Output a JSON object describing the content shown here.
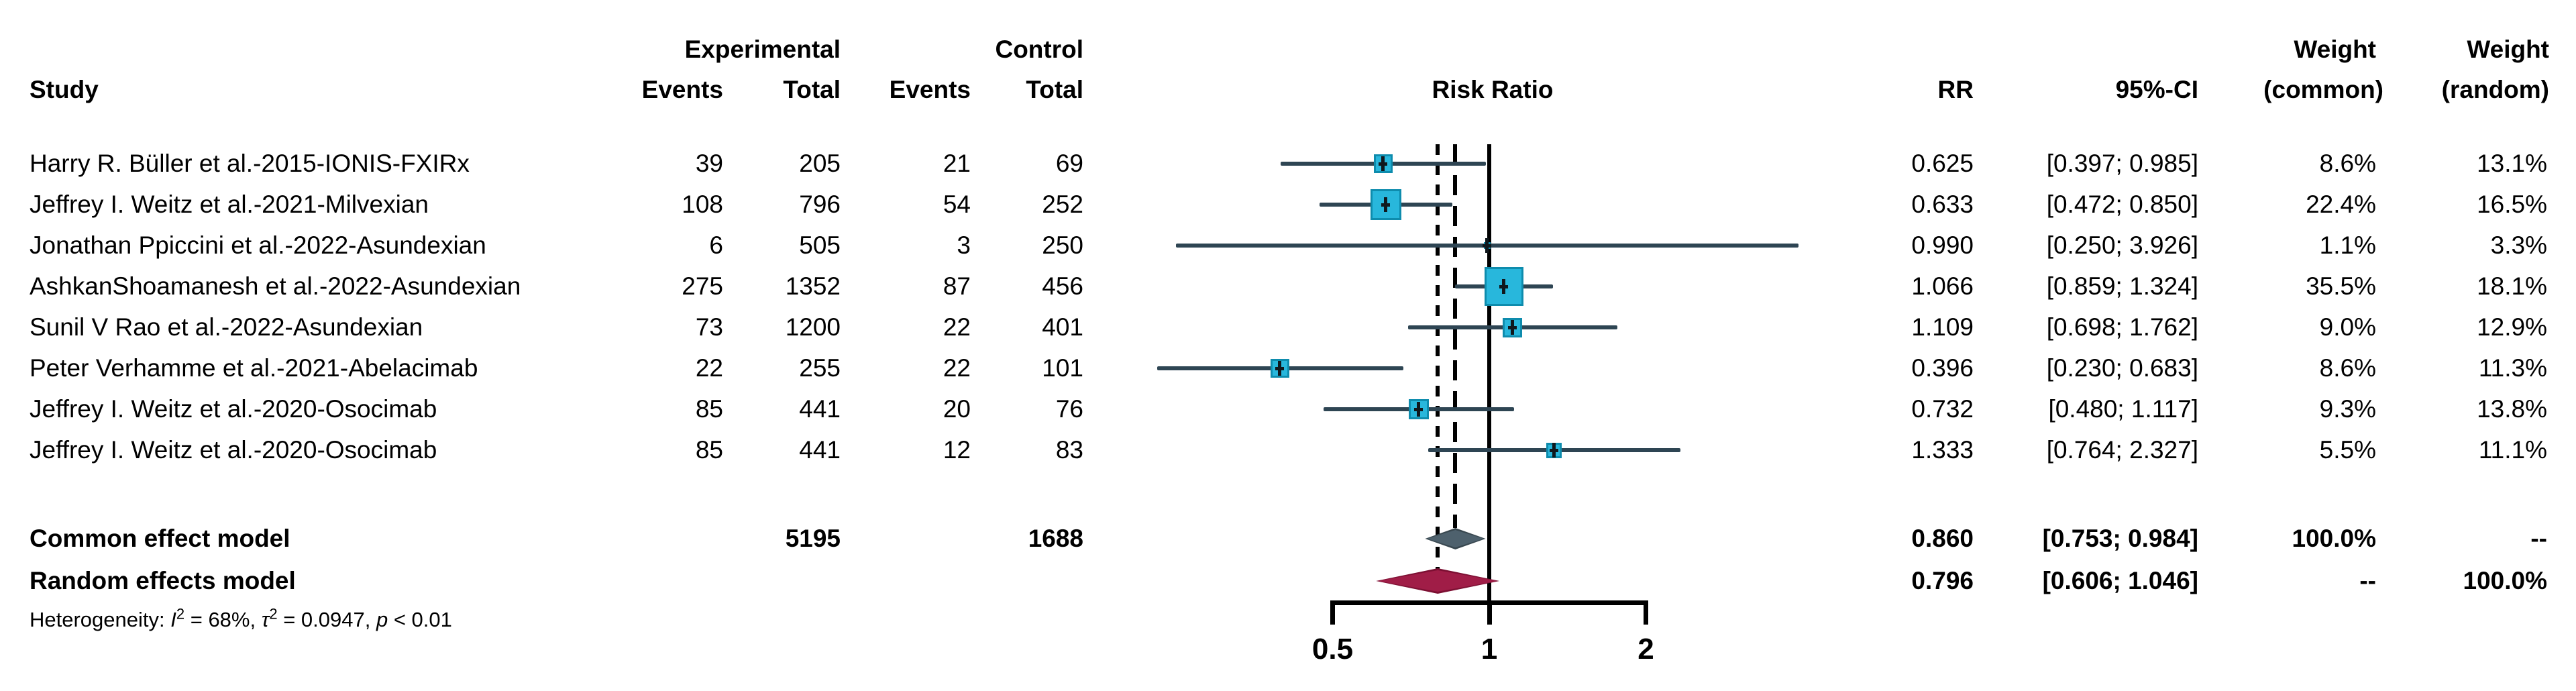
{
  "header": {
    "study": "Study",
    "group1": "Experimental",
    "group2": "Control",
    "events1": "Events",
    "total1": "Total",
    "events2": "Events",
    "total2": "Total",
    "plot_title": "Risk Ratio",
    "rr": "RR",
    "ci": "95%-CI",
    "weight_common_line1": "Weight",
    "weight_common_line2": "(common)",
    "weight_random_line1": "Weight",
    "weight_random_line2": "(random)"
  },
  "chart_data": {
    "type": "forest",
    "effect_measure": "Risk Ratio",
    "x_scale": "log2",
    "x_ticks": [
      0.5,
      1,
      2
    ],
    "x_tick_labels": [
      "0.5",
      "1",
      "2"
    ],
    "null_value": 1,
    "studies": [
      {
        "name": "Harry R. Büller et al.-2015-IONIS-FXIRx",
        "events_exp": "39",
        "total_exp": "205",
        "events_ctrl": "21",
        "total_ctrl": "69",
        "rr": 0.625,
        "ci_lo": 0.397,
        "ci_hi": 0.985,
        "rr_text": "0.625",
        "ci_text": "[0.397; 0.985]",
        "w_common": 8.6,
        "w_random": 13.1,
        "w_common_text": "8.6%",
        "w_random_text": "13.1%"
      },
      {
        "name": "Jeffrey I. Weitz et al.-2021-Milvexian",
        "events_exp": "108",
        "total_exp": "796",
        "events_ctrl": "54",
        "total_ctrl": "252",
        "rr": 0.633,
        "ci_lo": 0.472,
        "ci_hi": 0.85,
        "rr_text": "0.633",
        "ci_text": "[0.472; 0.850]",
        "w_common": 22.4,
        "w_random": 16.5,
        "w_common_text": "22.4%",
        "w_random_text": "16.5%"
      },
      {
        "name": "Jonathan Ppiccini et al.-2022-Asundexian",
        "events_exp": "6",
        "total_exp": "505",
        "events_ctrl": "3",
        "total_ctrl": "250",
        "rr": 0.99,
        "ci_lo": 0.25,
        "ci_hi": 3.926,
        "rr_text": "0.990",
        "ci_text": "[0.250; 3.926]",
        "w_common": 1.1,
        "w_random": 3.3,
        "w_common_text": "1.1%",
        "w_random_text": "3.3%"
      },
      {
        "name": "AshkanShoamanesh et al.-2022-Asundexian",
        "events_exp": "275",
        "total_exp": "1352",
        "events_ctrl": "87",
        "total_ctrl": "456",
        "rr": 1.066,
        "ci_lo": 0.859,
        "ci_hi": 1.324,
        "rr_text": "1.066",
        "ci_text": "[0.859; 1.324]",
        "w_common": 35.5,
        "w_random": 18.1,
        "w_common_text": "35.5%",
        "w_random_text": "18.1%"
      },
      {
        "name": "Sunil V Rao et al.-2022-Asundexian",
        "events_exp": "73",
        "total_exp": "1200",
        "events_ctrl": "22",
        "total_ctrl": "401",
        "rr": 1.109,
        "ci_lo": 0.698,
        "ci_hi": 1.762,
        "rr_text": "1.109",
        "ci_text": "[0.698; 1.762]",
        "w_common": 9.0,
        "w_random": 12.9,
        "w_common_text": "9.0%",
        "w_random_text": "12.9%"
      },
      {
        "name": "Peter Verhamme et al.-2021-Abelacimab",
        "events_exp": "22",
        "total_exp": "255",
        "events_ctrl": "22",
        "total_ctrl": "101",
        "rr": 0.396,
        "ci_lo": 0.23,
        "ci_hi": 0.683,
        "rr_text": "0.396",
        "ci_text": "[0.230; 0.683]",
        "w_common": 8.6,
        "w_random": 11.3,
        "w_common_text": "8.6%",
        "w_random_text": "11.3%"
      },
      {
        "name": "Jeffrey I. Weitz et al.-2020-Osocimab",
        "events_exp": "85",
        "total_exp": "441",
        "events_ctrl": "20",
        "total_ctrl": "76",
        "rr": 0.732,
        "ci_lo": 0.48,
        "ci_hi": 1.117,
        "rr_text": "0.732",
        "ci_text": "[0.480; 1.117]",
        "w_common": 9.3,
        "w_random": 13.8,
        "w_common_text": "9.3%",
        "w_random_text": "13.8%"
      },
      {
        "name": "Jeffrey I. Weitz et al.-2020-Osocimab",
        "events_exp": "85",
        "total_exp": "441",
        "events_ctrl": "12",
        "total_ctrl": "83",
        "rr": 1.333,
        "ci_lo": 0.764,
        "ci_hi": 2.327,
        "rr_text": "1.333",
        "ci_text": "[0.764; 2.327]",
        "w_common": 5.5,
        "w_random": 11.1,
        "w_common_text": "5.5%",
        "w_random_text": "11.1%"
      }
    ],
    "models": [
      {
        "name": "Common effect model",
        "total_exp": "5195",
        "total_ctrl": "1688",
        "rr": 0.86,
        "ci_lo": 0.753,
        "ci_hi": 0.984,
        "rr_text": "0.860",
        "ci_text": "[0.753; 0.984]",
        "w_common_text": "100.0%",
        "w_random_text": "--",
        "diamond_fill": "#4e616d",
        "diamond_edge": "#38474f",
        "line_style": "ldash"
      },
      {
        "name": "Random effects model",
        "total_exp": "",
        "total_ctrl": "",
        "rr": 0.796,
        "ci_lo": 0.606,
        "ci_hi": 1.046,
        "rr_text": "0.796",
        "ci_text": "[0.606; 1.046]",
        "w_common_text": "--",
        "w_random_text": "100.0%",
        "diamond_fill": "#a01d47",
        "diamond_edge": "#7c0f32",
        "line_style": "dots"
      }
    ],
    "heterogeneity": {
      "prefix": "Heterogeneity: ",
      "i_label": "I",
      "i_sup": "2",
      "i_val": " = 68%, ",
      "tau_label": "τ",
      "tau_sup": "2",
      "tau_val": " = 0.0947, ",
      "p_label": "p",
      "p_val": " < 0.01",
      "full_text": "Heterogeneity: I² = 68%, τ² = 0.0947, p < 0.01"
    },
    "colors": {
      "square_fill": "#28b7dc",
      "square_border": "#0e8cad",
      "ci_line": "#2e4553",
      "null_line": "#000000",
      "common_diamond": "#4e616d",
      "random_diamond": "#a01d47"
    }
  }
}
